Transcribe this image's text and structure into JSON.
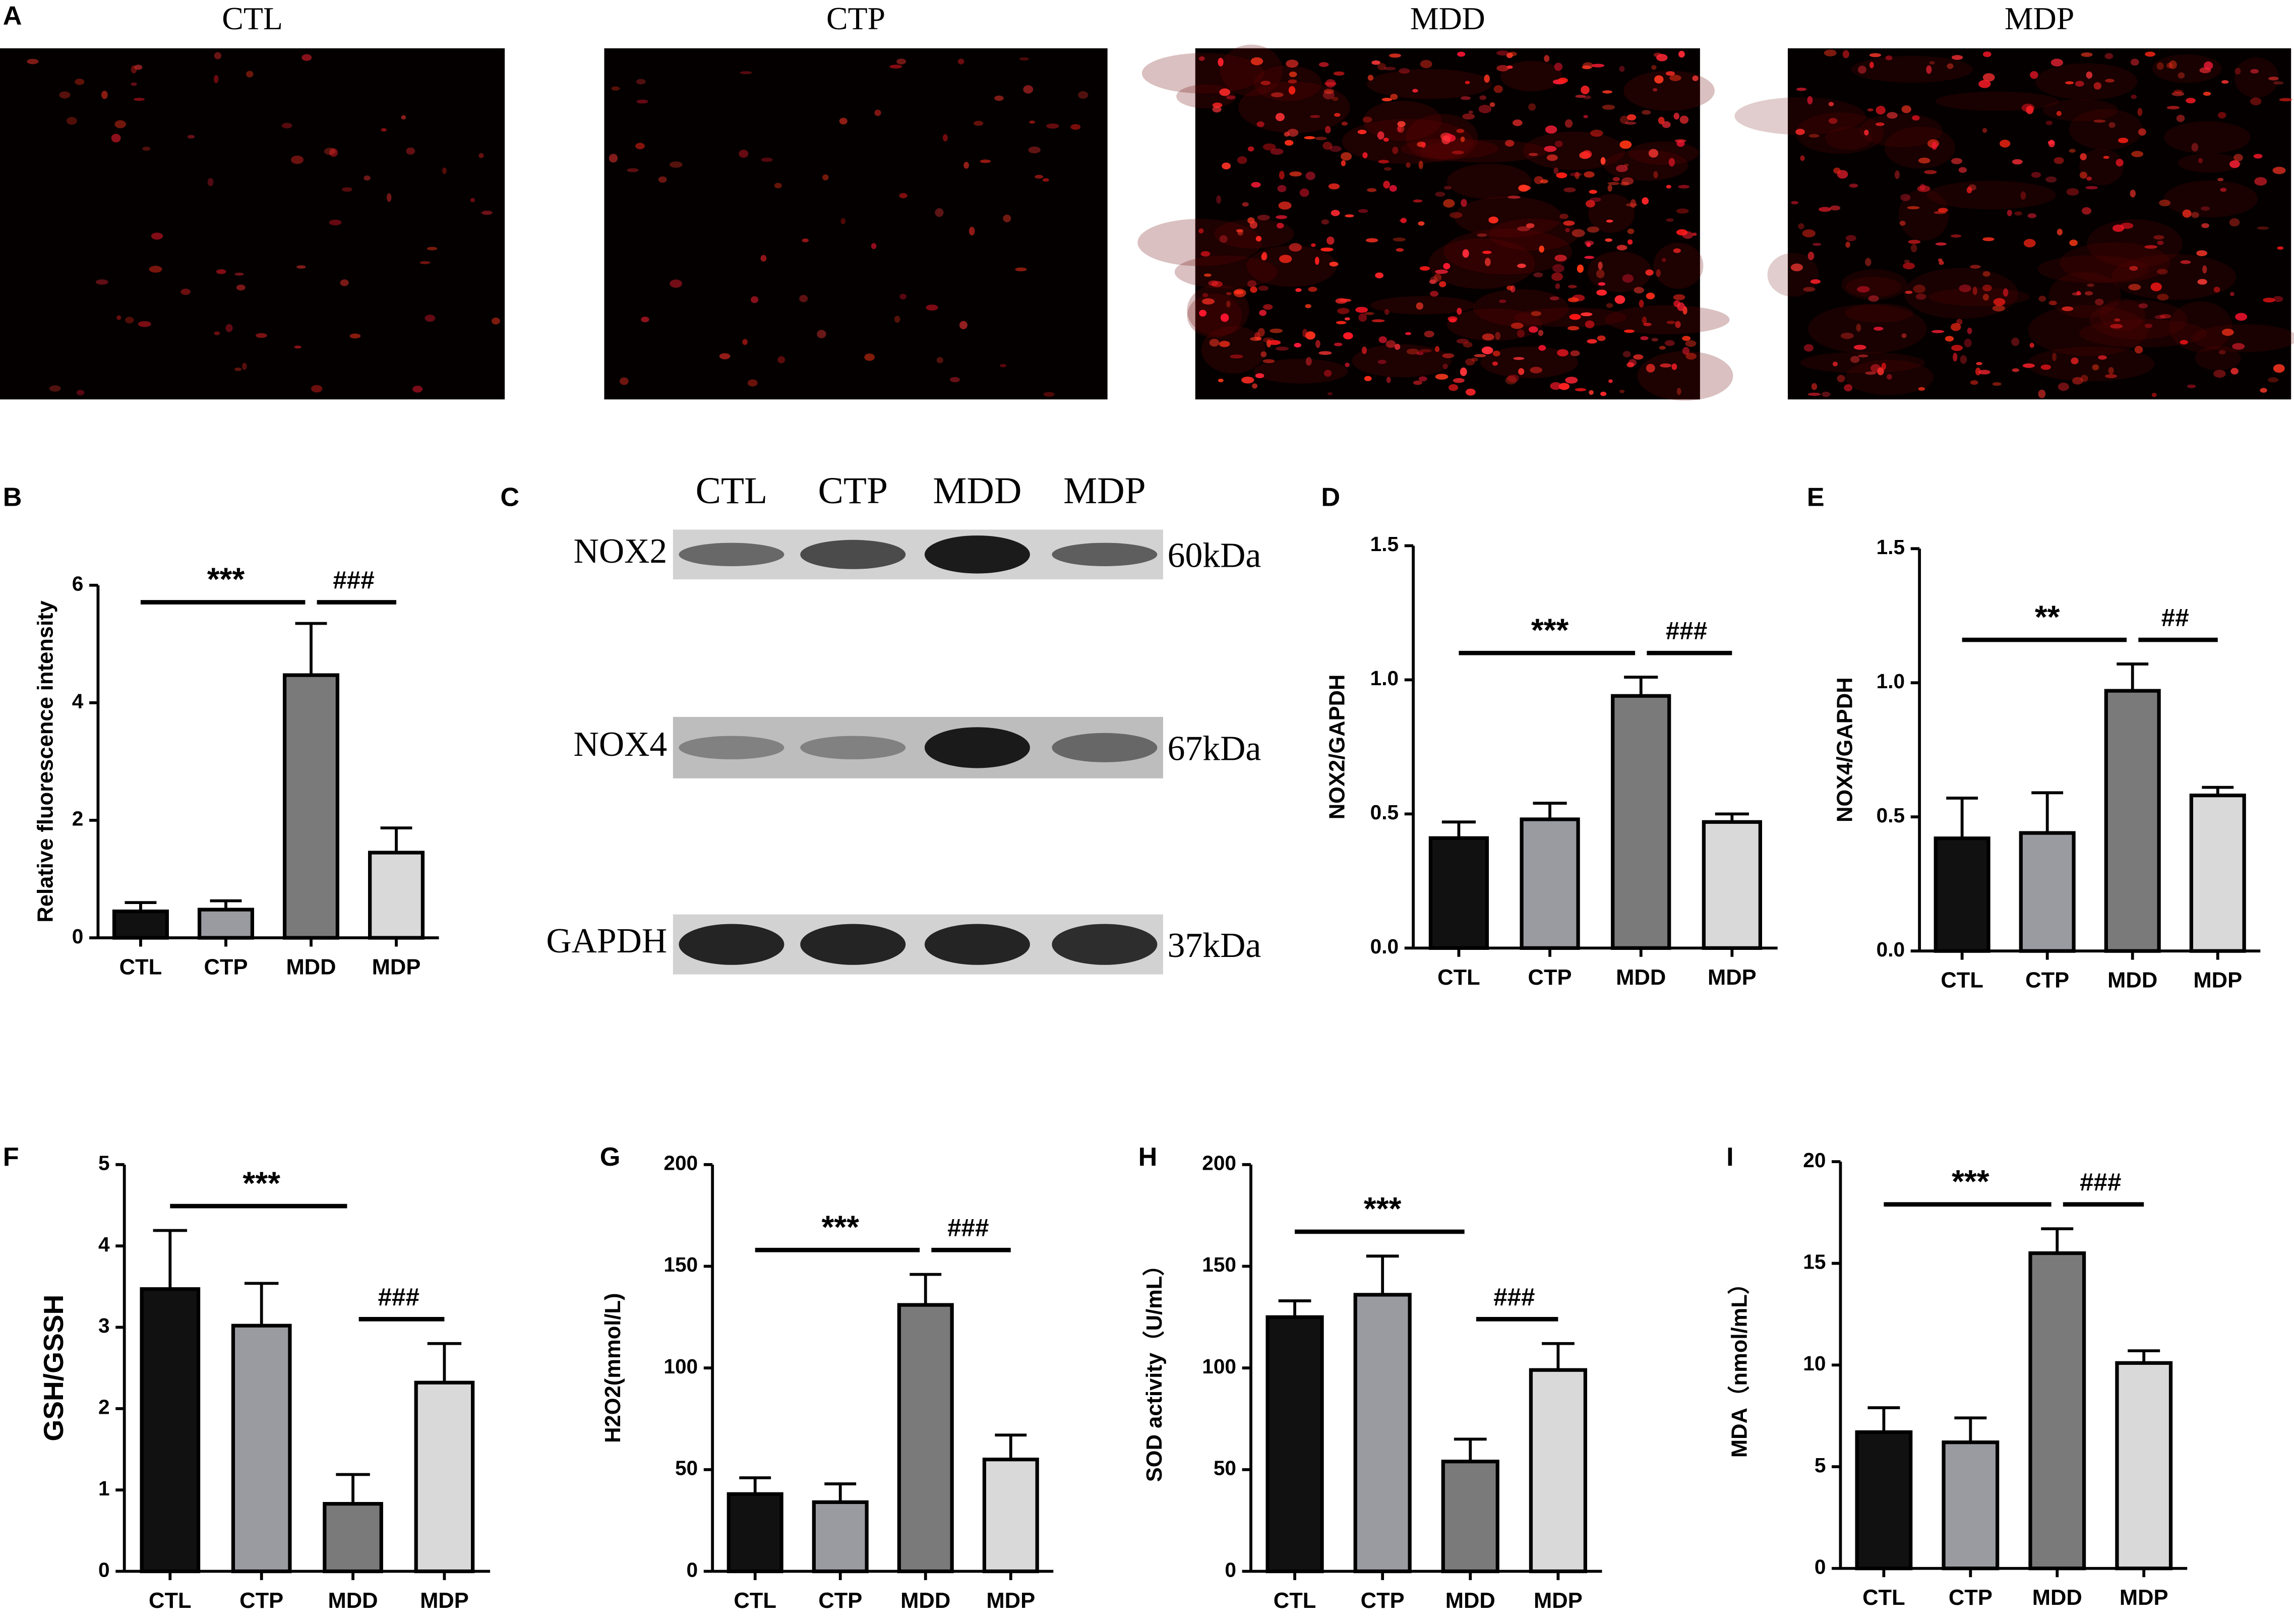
{
  "fluorescence": {
    "panel": "A",
    "groups": [
      "CTL",
      "CTP",
      "MDD",
      "MDP"
    ]
  },
  "blot": {
    "panel": "C",
    "lanes": [
      "CTL",
      "CTP",
      "MDD",
      "MDP"
    ],
    "proteins": [
      {
        "name": "NOX2",
        "size": "60kDa"
      },
      {
        "name": "NOX4",
        "size": "67kDa"
      },
      {
        "name": "GAPDH",
        "size": "37kDa"
      }
    ]
  },
  "chart_data": [
    {
      "type": "bar",
      "panel": "B",
      "ylabel": "Relative fluorescence intensity",
      "categories": [
        "CTL",
        "CTP",
        "MDD",
        "MDP"
      ],
      "values": [
        0.45,
        0.48,
        4.47,
        1.45
      ],
      "errors": [
        0.15,
        0.15,
        0.88,
        0.42
      ],
      "colors": [
        "#111111",
        "#9a9ba1",
        "#7a7a7a",
        "#d9d9d9"
      ],
      "ylim": [
        0,
        6
      ],
      "yticks": [
        0,
        2,
        4,
        6
      ],
      "significance": [
        {
          "label": "***",
          "from": "CTL",
          "to": "MDD"
        },
        {
          "label": "###",
          "from": "MDD",
          "to": "MDP"
        }
      ]
    },
    {
      "type": "bar",
      "panel": "D",
      "ylabel": "NOX2/GAPDH",
      "categories": [
        "CTL",
        "CTP",
        "MDD",
        "MDP"
      ],
      "values": [
        0.41,
        0.48,
        0.94,
        0.47
      ],
      "errors": [
        0.06,
        0.06,
        0.07,
        0.03
      ],
      "colors": [
        "#111111",
        "#9a9ba1",
        "#7a7a7a",
        "#d9d9d9"
      ],
      "ylim": [
        0,
        1.5
      ],
      "yticks": [
        {
          "value": 0,
          "label": "0.0"
        },
        {
          "value": 0.5,
          "label": "0.5"
        },
        {
          "value": 1,
          "label": "1.0"
        },
        {
          "value": 1.5,
          "label": "1.5"
        }
      ],
      "significance": [
        {
          "label": "***",
          "from": "CTL",
          "to": "MDD"
        },
        {
          "label": "###",
          "from": "MDD",
          "to": "MDP"
        }
      ]
    },
    {
      "type": "bar",
      "panel": "E",
      "ylabel": "NOX4/GAPDH",
      "categories": [
        "CTL",
        "CTP",
        "MDD",
        "MDP"
      ],
      "values": [
        0.42,
        0.44,
        0.97,
        0.58
      ],
      "errors": [
        0.15,
        0.15,
        0.1,
        0.03
      ],
      "colors": [
        "#111111",
        "#9a9ba1",
        "#7a7a7a",
        "#d9d9d9"
      ],
      "ylim": [
        0,
        1.5
      ],
      "yticks": [
        {
          "value": 0,
          "label": "0.0"
        },
        {
          "value": 0.5,
          "label": "0.5"
        },
        {
          "value": 1,
          "label": "1.0"
        },
        {
          "value": 1.5,
          "label": "1.5"
        }
      ],
      "significance": [
        {
          "label": "**",
          "from": "CTL",
          "to": "MDD"
        },
        {
          "label": "##",
          "from": "MDD",
          "to": "MDP"
        }
      ]
    },
    {
      "type": "bar",
      "panel": "F",
      "ylabel": "GSH/GSSH",
      "categories": [
        "CTL",
        "CTP",
        "MDD",
        "MDP"
      ],
      "values": [
        3.47,
        3.02,
        0.83,
        2.32
      ],
      "errors": [
        0.72,
        0.52,
        0.36,
        0.48
      ],
      "colors": [
        "#111111",
        "#9a9ba1",
        "#7a7a7a",
        "#d9d9d9"
      ],
      "ylim": [
        0,
        5
      ],
      "yticks": [
        0,
        1,
        2,
        3,
        4,
        5
      ],
      "significance": [
        {
          "label": "***",
          "from": "CTL",
          "to": "MDD"
        },
        {
          "label": "###",
          "from": "MDD",
          "to": "MDP"
        }
      ]
    },
    {
      "type": "bar",
      "panel": "G",
      "ylabel": "H2O2(mmol/L)",
      "categories": [
        "CTL",
        "CTP",
        "MDD",
        "MDP"
      ],
      "values": [
        38,
        34,
        131,
        55
      ],
      "errors": [
        8,
        9,
        15,
        12
      ],
      "colors": [
        "#111111",
        "#9a9ba1",
        "#7a7a7a",
        "#d9d9d9"
      ],
      "ylim": [
        0,
        200
      ],
      "yticks": [
        0,
        50,
        100,
        150,
        200
      ],
      "significance": [
        {
          "label": "***",
          "from": "CTL",
          "to": "MDD"
        },
        {
          "label": "###",
          "from": "MDD",
          "to": "MDP"
        }
      ]
    },
    {
      "type": "bar",
      "panel": "H",
      "ylabel": "SOD activity（U/mL）",
      "categories": [
        "CTL",
        "CTP",
        "MDD",
        "MDP"
      ],
      "values": [
        125,
        136,
        54,
        99
      ],
      "errors": [
        8,
        19,
        11,
        13
      ],
      "colors": [
        "#111111",
        "#9a9ba1",
        "#7a7a7a",
        "#d9d9d9"
      ],
      "ylim": [
        0,
        200
      ],
      "yticks": [
        0,
        50,
        100,
        150,
        200
      ],
      "significance": [
        {
          "label": "***",
          "from": "CTL",
          "to": "MDD"
        },
        {
          "label": "###",
          "from": "MDD",
          "to": "MDP"
        }
      ]
    },
    {
      "type": "bar",
      "panel": "I",
      "ylabel": "MDA（nmol/mL）",
      "categories": [
        "CTL",
        "CTP",
        "MDD",
        "MDP"
      ],
      "values": [
        6.7,
        6.2,
        15.5,
        10.1
      ],
      "errors": [
        1.2,
        1.2,
        1.2,
        0.6
      ],
      "colors": [
        "#111111",
        "#9a9ba1",
        "#7a7a7a",
        "#d9d9d9"
      ],
      "ylim": [
        0,
        20
      ],
      "yticks": [
        0,
        5,
        10,
        15,
        20
      ],
      "significance": [
        {
          "label": "***",
          "from": "CTL",
          "to": "MDD"
        },
        {
          "label": "###",
          "from": "MDD",
          "to": "MDP"
        }
      ]
    }
  ]
}
